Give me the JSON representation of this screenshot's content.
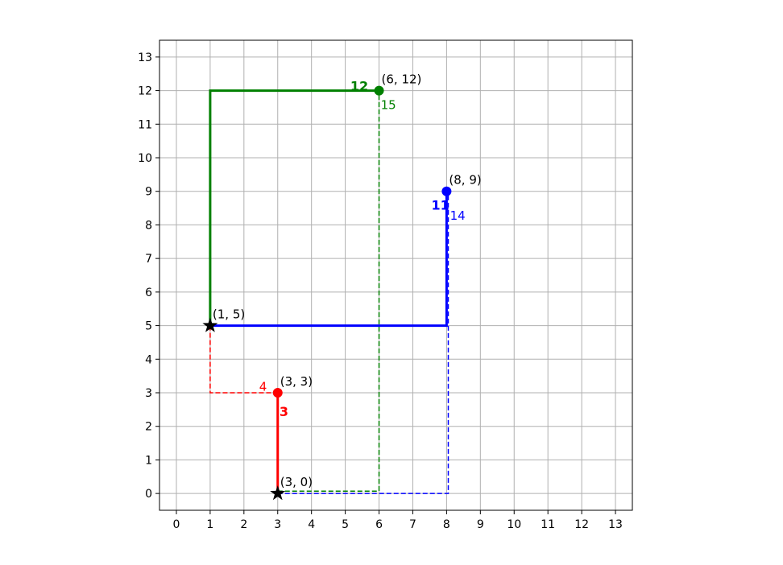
{
  "colors": {
    "red": "#ff0000",
    "green": "#008000",
    "blue": "#0000ff",
    "black": "#000000",
    "grid": "#b0b0b0"
  },
  "chart_data": {
    "type": "scatter",
    "title": "",
    "xlabel": "",
    "ylabel": "",
    "xlim": [
      -0.5,
      13.5
    ],
    "ylim": [
      -0.5,
      13.5
    ],
    "x_ticks": [
      0,
      1,
      2,
      3,
      4,
      5,
      6,
      7,
      8,
      9,
      10,
      11,
      12,
      13
    ],
    "y_ticks": [
      0,
      1,
      2,
      3,
      4,
      5,
      6,
      7,
      8,
      9,
      10,
      11,
      12,
      13
    ],
    "grid": true,
    "start_points": [
      {
        "x": 3,
        "y": 0,
        "label": "(3, 0)",
        "marker": "star",
        "color": "black"
      },
      {
        "x": 1,
        "y": 5,
        "label": "(1, 5)",
        "marker": "star",
        "color": "black"
      }
    ],
    "points": [
      {
        "x": 3,
        "y": 3,
        "label": "(3, 3)",
        "color": "red"
      },
      {
        "x": 8,
        "y": 9,
        "label": "(8, 9)",
        "color": "blue"
      },
      {
        "x": 6,
        "y": 12,
        "label": "(6, 12)",
        "color": "green"
      }
    ],
    "paths": [
      {
        "color": "red",
        "style": "solid",
        "points": [
          [
            3,
            0
          ],
          [
            3,
            3
          ]
        ]
      },
      {
        "color": "red",
        "style": "dashed",
        "points": [
          [
            1,
            5
          ],
          [
            1,
            3
          ],
          [
            3,
            3
          ]
        ]
      },
      {
        "color": "blue",
        "style": "solid",
        "points": [
          [
            1,
            5
          ],
          [
            8,
            5
          ],
          [
            8,
            9
          ]
        ]
      },
      {
        "color": "blue",
        "style": "dashed",
        "points": [
          [
            3,
            0
          ],
          [
            8.05,
            0
          ],
          [
            8.05,
            9
          ]
        ]
      },
      {
        "color": "green",
        "style": "solid",
        "points": [
          [
            1,
            5
          ],
          [
            1,
            12
          ],
          [
            6,
            12
          ]
        ]
      },
      {
        "color": "green",
        "style": "dashed",
        "points": [
          [
            3,
            0.07
          ],
          [
            6,
            0.07
          ],
          [
            6,
            12
          ]
        ]
      }
    ],
    "segment_labels": [
      {
        "text": "3",
        "color": "red",
        "bold": true,
        "x": 3.05,
        "y": 2.45
      },
      {
        "text": "4",
        "color": "red",
        "bold": false,
        "x": 2.45,
        "y": 3.2
      },
      {
        "text": "11",
        "color": "blue",
        "bold": true,
        "x": 7.55,
        "y": 8.6
      },
      {
        "text": "14",
        "color": "blue",
        "bold": false,
        "x": 8.1,
        "y": 8.3
      },
      {
        "text": "12",
        "color": "green",
        "bold": true,
        "x": 5.15,
        "y": 12.15
      },
      {
        "text": "15",
        "color": "green",
        "bold": false,
        "x": 6.05,
        "y": 11.6
      }
    ]
  }
}
